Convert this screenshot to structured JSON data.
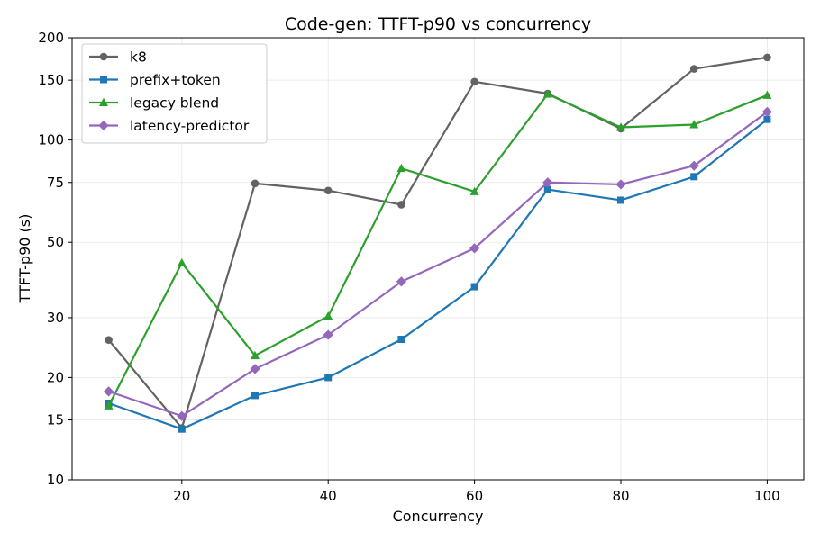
{
  "chart_data": {
    "type": "line",
    "title": "Code-gen: TTFT-p90 vs concurrency",
    "xlabel": "Concurrency",
    "ylabel": "TTFT-p90 (s)",
    "yscale": "log",
    "x": [
      10,
      20,
      30,
      40,
      50,
      60,
      70,
      80,
      90,
      100
    ],
    "xlim": [
      5,
      105
    ],
    "ylim": [
      10,
      200
    ],
    "xticks": [
      20,
      40,
      60,
      80,
      100
    ],
    "xtick_labels": [
      "20",
      "40",
      "60",
      "80",
      "100"
    ],
    "yticks": [
      10,
      15,
      20,
      30,
      50,
      75,
      100,
      150,
      200
    ],
    "ytick_labels": [
      "10",
      "15",
      "20",
      "30",
      "50",
      "75",
      "100",
      "150",
      "200"
    ],
    "grid": true,
    "legend_position": "top-left",
    "series": [
      {
        "name": "k8",
        "color": "#636363",
        "marker": "circle",
        "values": [
          25.8,
          14.2,
          74.5,
          71.0,
          64.5,
          148.5,
          137.0,
          108.0,
          162.0,
          175.0
        ]
      },
      {
        "name": "prefix+token",
        "color": "#1f77b4",
        "marker": "square",
        "values": [
          16.8,
          14.1,
          17.7,
          20.0,
          25.9,
          37.0,
          71.5,
          66.5,
          78.0,
          115.0
        ]
      },
      {
        "name": "legacy blend",
        "color": "#2ca02c",
        "marker": "triangle",
        "values": [
          16.5,
          43.5,
          23.2,
          30.3,
          82.5,
          70.5,
          136.5,
          109.0,
          111.0,
          135.5
        ]
      },
      {
        "name": "latency-predictor",
        "color": "#9467bd",
        "marker": "diamond",
        "values": [
          18.2,
          15.4,
          21.2,
          26.7,
          38.3,
          48.0,
          75.0,
          74.0,
          84.0,
          121.0
        ]
      }
    ]
  }
}
